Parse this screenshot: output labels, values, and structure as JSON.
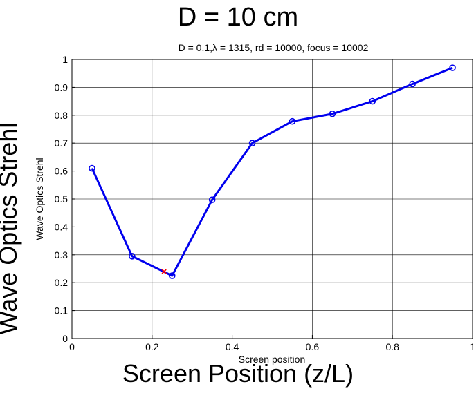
{
  "chart_data": {
    "type": "line",
    "title": "D = 10 cm",
    "subtitle": "D = 0.1,λ = 1315, rd = 10000, focus = 10002",
    "xlabel_outer": "Screen Position (z/L)",
    "ylabel_outer": "Wave Optics Strehl",
    "xlabel_inner": "Screen position",
    "ylabel_inner": "Wave Optics Strehl",
    "xlim": [
      0,
      1
    ],
    "ylim": [
      0,
      1
    ],
    "x_ticks": [
      0,
      0.2,
      0.4,
      0.6,
      0.8,
      1
    ],
    "x_tick_labels": [
      "0",
      "0.2",
      "0.4",
      "0.6",
      "0.8",
      "1"
    ],
    "y_ticks": [
      0,
      0.1,
      0.2,
      0.3,
      0.4,
      0.5,
      0.6,
      0.7,
      0.8,
      0.9,
      1
    ],
    "y_tick_labels": [
      "0",
      "0.1",
      "0.2",
      "0.3",
      "0.4",
      "0.5",
      "0.6",
      "0.7",
      "0.8",
      "0.9",
      "1"
    ],
    "grid": true,
    "series": [
      {
        "color": "#0000ee",
        "marker": "circle",
        "x": [
          0.05,
          0.15,
          0.25,
          0.35,
          0.45,
          0.55,
          0.65,
          0.75,
          0.85,
          0.95
        ],
        "y": [
          0.61,
          0.295,
          0.225,
          0.497,
          0.7,
          0.778,
          0.805,
          0.85,
          0.912,
          0.97
        ]
      }
    ],
    "highlight_points": [
      {
        "x": 0.23,
        "y": 0.24,
        "color": "#ff0000",
        "marker": "x"
      }
    ]
  }
}
